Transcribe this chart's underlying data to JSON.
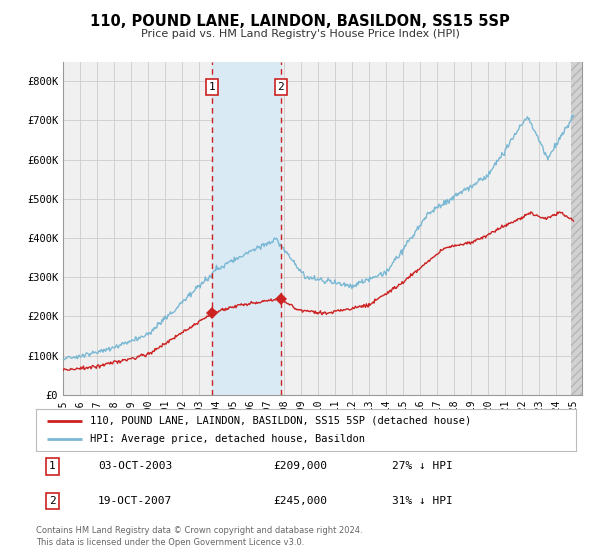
{
  "title": "110, POUND LANE, LAINDON, BASILDON, SS15 5SP",
  "subtitle": "Price paid vs. HM Land Registry's House Price Index (HPI)",
  "xlim": [
    1995.0,
    2025.5
  ],
  "ylim": [
    0,
    850000
  ],
  "yticks": [
    0,
    100000,
    200000,
    300000,
    400000,
    500000,
    600000,
    700000,
    800000
  ],
  "ytick_labels": [
    "£0",
    "£100K",
    "£200K",
    "£300K",
    "£400K",
    "£500K",
    "£600K",
    "£700K",
    "£800K"
  ],
  "xtick_years": [
    1995,
    1996,
    1997,
    1998,
    1999,
    2000,
    2001,
    2002,
    2003,
    2004,
    2005,
    2006,
    2007,
    2008,
    2009,
    2010,
    2011,
    2012,
    2013,
    2014,
    2015,
    2016,
    2017,
    2018,
    2019,
    2020,
    2021,
    2022,
    2023,
    2024,
    2025
  ],
  "transaction1": {
    "date": "03-OCT-2003",
    "year": 2003.75,
    "price": 209000,
    "label": "27% ↓ HPI",
    "num": "1"
  },
  "transaction2": {
    "date": "19-OCT-2007",
    "year": 2007.8,
    "price": 245000,
    "label": "31% ↓ HPI",
    "num": "2"
  },
  "hpi_color": "#7bb8d4",
  "price_color": "#cc2222",
  "bg_color": "#ffffff",
  "plot_bg_color": "#f0f0f0",
  "grid_color": "#cccccc",
  "shade_color": "#daeaf5",
  "legend_line1": "110, POUND LANE, LAINDON, BASILDON, SS15 5SP (detached house)",
  "legend_line2": "HPI: Average price, detached house, Basildon",
  "footer1": "Contains HM Land Registry data © Crown copyright and database right 2024.",
  "footer2": "This data is licensed under the Open Government Licence v3.0."
}
